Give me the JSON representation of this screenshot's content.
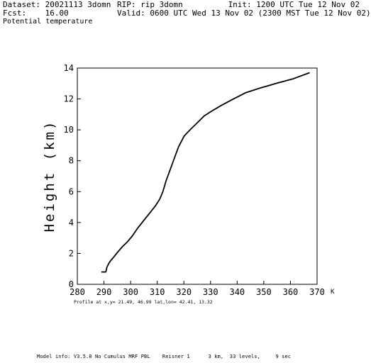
{
  "header": {
    "dataset": "Dataset: 20021113 3domn",
    "rip": "RIP: rip 3domn",
    "init": "Init: 1200 UTC Tue 12 Nov 02",
    "fcst": "Fcst:    16.00",
    "valid": "Valid: 0600 UTC Wed 13 Nov 02 (2300 MST Tue 12 Nov 02)",
    "variable": "Potential temperature"
  },
  "profile_info": "Profile at x,y= 21.49,  46.99     lat,lon= 42.41,  13.32",
  "footer": "Model info: V3.5.0 No Cumulus MRF PBL    Reisner 1      3 km,  33 levels,     9 sec",
  "chart_data": {
    "type": "line",
    "title": "",
    "xlabel": "K",
    "ylabel": "Height (km)",
    "xlim": [
      280,
      370
    ],
    "ylim": [
      0,
      14
    ],
    "x_ticks": [
      "280",
      "290",
      "300",
      "310",
      "320",
      "330",
      "340",
      "350",
      "360",
      "370"
    ],
    "y_ticks": [
      "0",
      "2",
      "4",
      "6",
      "8",
      "10",
      "12",
      "14"
    ],
    "series": [
      {
        "x": [
          289.0,
          290.7,
          291.1,
          291.8,
          292.6,
          293.6,
          295.0,
          297.0,
          298.8,
          300.5,
          302.5,
          304.8,
          307.1,
          309.4,
          310.9,
          312.1,
          313.3,
          314.8,
          316.3,
          318.0,
          320.1,
          322.3,
          324.7,
          327.6,
          330.3,
          334.2,
          338.6,
          343.1,
          348.5,
          354.5,
          360.9,
          367.2
        ],
        "y": [
          0.8,
          0.8,
          1.1,
          1.35,
          1.55,
          1.75,
          2.05,
          2.45,
          2.75,
          3.1,
          3.6,
          4.1,
          4.6,
          5.1,
          5.5,
          6.0,
          6.7,
          7.4,
          8.1,
          8.9,
          9.6,
          10.0,
          10.4,
          10.9,
          11.2,
          11.6,
          12.0,
          12.4,
          12.7,
          13.0,
          13.3,
          13.7
        ]
      }
    ]
  }
}
